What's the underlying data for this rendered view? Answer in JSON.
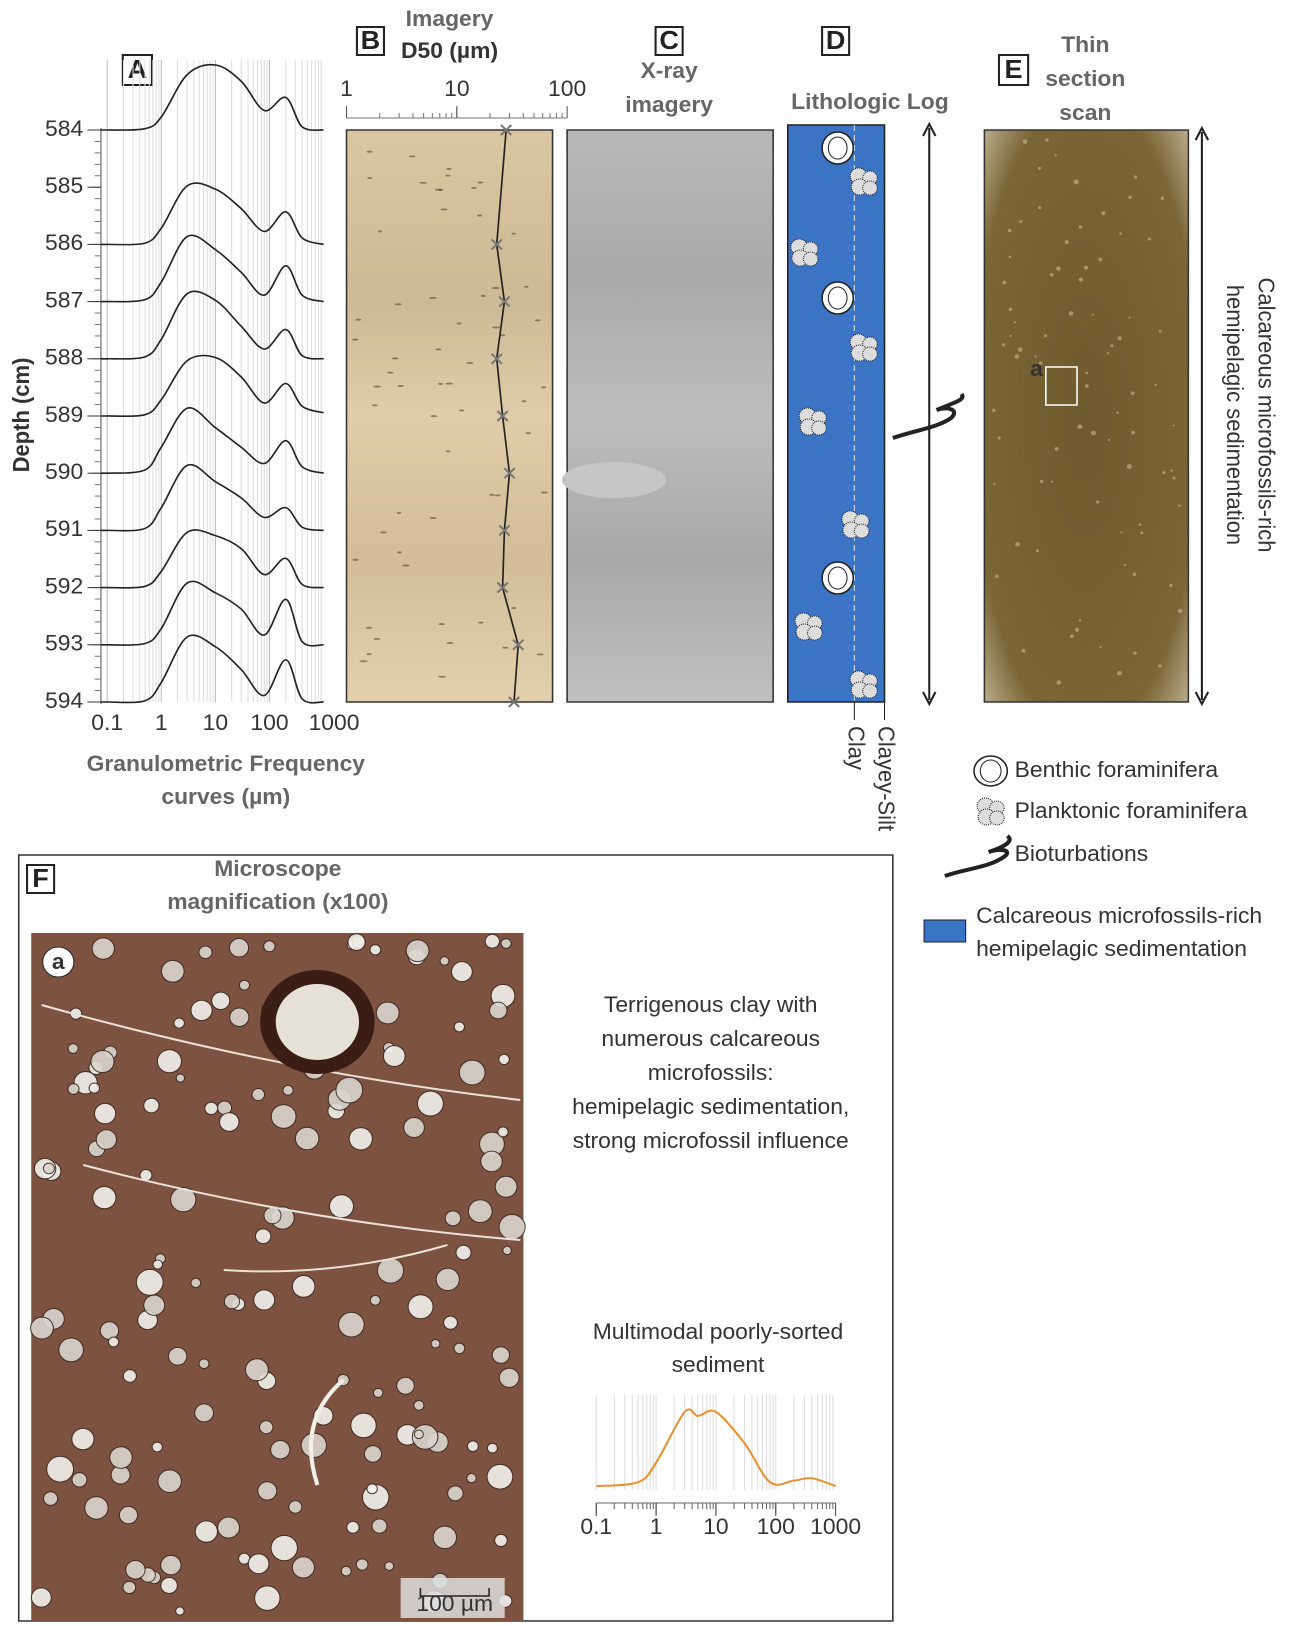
{
  "panel_a": {
    "label": "A",
    "ylabel": "Depth (cm)",
    "xlabel_lines": [
      "Granulometric Frequency",
      "curves (µm)"
    ],
    "ylim": [
      584,
      594
    ],
    "yticks": [
      584,
      585,
      586,
      587,
      588,
      589,
      590,
      591,
      592,
      593,
      594
    ],
    "xlim": [
      0.1,
      1000
    ],
    "xticks": [
      0.1,
      1,
      10,
      100,
      1000
    ],
    "log_x": true,
    "grid": true,
    "curve_x": [
      0.1,
      0.5,
      1,
      3,
      10,
      30,
      80,
      200,
      400,
      1000
    ],
    "curves": [
      {
        "depth": 584,
        "values": [
          0,
          0.02,
          0.2,
          0.85,
          1.0,
          0.75,
          0.3,
          0.5,
          0.05,
          0
        ]
      },
      {
        "depth": 586,
        "values": [
          0,
          0.02,
          0.25,
          0.9,
          0.85,
          0.55,
          0.2,
          0.5,
          0.1,
          0
        ]
      },
      {
        "depth": 587,
        "values": [
          0,
          0.03,
          0.3,
          1.0,
          0.8,
          0.45,
          0.1,
          0.55,
          0.1,
          0
        ]
      },
      {
        "depth": 588,
        "values": [
          0,
          0.03,
          0.3,
          1.0,
          0.9,
          0.5,
          0.15,
          0.45,
          0.05,
          0
        ]
      },
      {
        "depth": 589,
        "values": [
          0,
          0.02,
          0.25,
          0.85,
          0.9,
          0.6,
          0.2,
          0.5,
          0.15,
          0.05
        ]
      },
      {
        "depth": 590,
        "values": [
          0,
          0.05,
          0.4,
          1.0,
          0.7,
          0.4,
          0.15,
          0.5,
          0.1,
          0
        ]
      },
      {
        "depth": 591,
        "values": [
          0,
          0.03,
          0.35,
          1.0,
          0.75,
          0.5,
          0.2,
          0.35,
          0.05,
          0
        ]
      },
      {
        "depth": 592,
        "values": [
          0,
          0.02,
          0.25,
          0.85,
          0.8,
          0.6,
          0.2,
          0.45,
          0.05,
          0
        ]
      },
      {
        "depth": 593,
        "values": [
          0,
          0.02,
          0.25,
          0.95,
          0.8,
          0.55,
          0.15,
          0.7,
          0.05,
          0
        ]
      },
      {
        "depth": 594,
        "values": [
          0,
          0.02,
          0.3,
          1.0,
          0.85,
          0.5,
          0.1,
          0.65,
          0.05,
          0
        ]
      }
    ]
  },
  "panel_b": {
    "label": "B",
    "title_lines": [
      "Imagery",
      "D50 (µm)"
    ],
    "xlim": [
      1,
      100
    ],
    "xticks": [
      1,
      10,
      100
    ],
    "log_x": true,
    "depth": [
      584,
      586,
      587,
      588,
      589,
      590,
      591,
      592,
      593,
      594
    ],
    "d50": [
      28,
      23,
      27,
      23,
      26,
      30,
      27,
      26,
      36,
      33
    ]
  },
  "panel_c": {
    "label": "C",
    "title_lines": [
      "X-ray",
      "imagery"
    ]
  },
  "panel_d": {
    "label": "D",
    "title": "Lithologic Log",
    "scale_labels": [
      "Clay",
      "Clayey-Silt"
    ],
    "color": "#3b74c5"
  },
  "panel_e": {
    "label": "E",
    "title_lines": [
      "Thin",
      "section",
      "scan"
    ],
    "inset_label": "a",
    "side_text_lines": [
      "Calcareous microfossils-rich",
      "hemipelagic sedimentation"
    ]
  },
  "legend": {
    "items": [
      "Benthic foraminifera",
      "Planktonic foraminifera",
      "Bioturbations"
    ],
    "facies_lines": [
      "Calcareous microfossils-rich",
      "hemipelagic sedimentation"
    ]
  },
  "panel_f": {
    "label": "F",
    "title_lines": [
      "Microscope",
      "magnification (x100)"
    ],
    "inset_label": "a",
    "scale_bar": "100 µm",
    "description_lines": [
      "Terrigenous clay with",
      "numerous calcareous",
      "microfossils:",
      "hemipelagic sedimentation,",
      "strong microfossil influence"
    ],
    "chart": {
      "type": "line",
      "title_lines": [
        "Multimodal poorly-sorted",
        "sediment"
      ],
      "color": "#e8922e",
      "xlim": [
        0.1,
        1000
      ],
      "xticks": [
        0.1,
        1,
        10,
        100,
        1000
      ],
      "log_x": true,
      "x": [
        0.1,
        0.5,
        1,
        3,
        5,
        10,
        30,
        80,
        200,
        400,
        1000
      ],
      "values": [
        0.05,
        0.1,
        0.35,
        1.0,
        0.95,
        1.0,
        0.6,
        0.1,
        0.12,
        0.15,
        0.05
      ]
    }
  }
}
